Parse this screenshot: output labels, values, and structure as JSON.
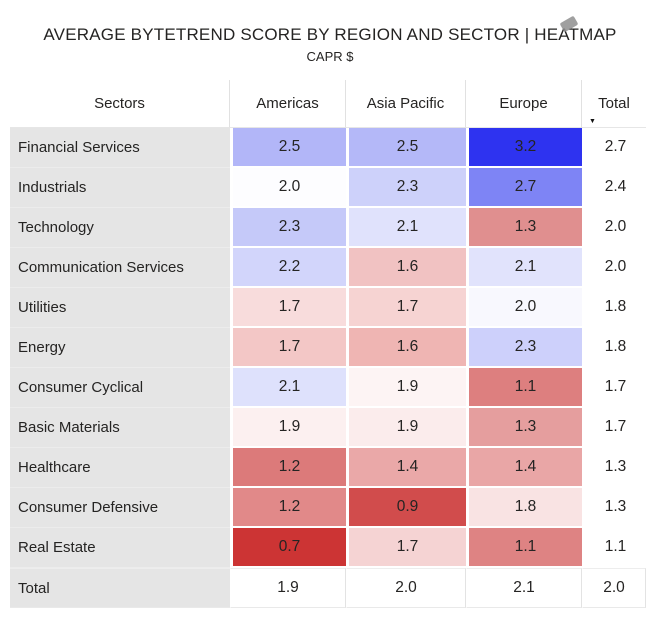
{
  "chart_data": {
    "type": "heatmap",
    "title": "AVERAGE BYTETREND SCORE BY REGION AND SECTOR | HEATMAP",
    "subtitle": "CAPR $",
    "x_categories": [
      "Americas",
      "Asia Pacific",
      "Europe",
      "Total"
    ],
    "y_categories": [
      "Financial Services",
      "Industrials",
      "Technology",
      "Communication Services",
      "Utilities",
      "Energy",
      "Consumer Cyclical",
      "Basic Materials",
      "Healthcare",
      "Consumer Defensive",
      "Real Estate",
      "Total"
    ],
    "values": [
      [
        2.5,
        2.5,
        3.2,
        2.7
      ],
      [
        2.0,
        2.3,
        2.7,
        2.4
      ],
      [
        2.3,
        2.1,
        1.3,
        2.0
      ],
      [
        2.2,
        1.6,
        2.1,
        2.0
      ],
      [
        1.7,
        1.7,
        2.0,
        1.8
      ],
      [
        1.7,
        1.6,
        2.3,
        1.8
      ],
      [
        2.1,
        1.9,
        1.1,
        1.7
      ],
      [
        1.9,
        1.9,
        1.3,
        1.7
      ],
      [
        1.2,
        1.4,
        1.4,
        1.3
      ],
      [
        1.2,
        0.9,
        1.8,
        1.3
      ],
      [
        0.7,
        1.7,
        1.1,
        1.1
      ],
      [
        1.9,
        2.0,
        2.1,
        2.0
      ]
    ],
    "color_scale": {
      "min": 0.7,
      "mid": 2.0,
      "max": 3.2,
      "min_color": "#cc3434",
      "mid_color": "#ffffff",
      "max_color": "#2e33f0",
      "applies_to": "region columns only, not Total column or Total row"
    },
    "sort": {
      "column": "Total",
      "direction": "descending"
    },
    "legend": "none",
    "grid": "off"
  },
  "table": {
    "columns": [
      "Sectors",
      "Americas",
      "Asia Pacific",
      "Europe",
      "Total"
    ],
    "sort": {
      "column": "Total",
      "direction": "descending",
      "indicator": "▼"
    },
    "rows": [
      {
        "sector": "Financial Services",
        "values": [
          "2.5",
          "2.5",
          "3.2",
          "2.7"
        ],
        "colors": [
          "#b2b6f8",
          "#b4b8f8",
          "#2e33f0",
          "#ffffff"
        ]
      },
      {
        "sector": "Industrials",
        "values": [
          "2.0",
          "2.3",
          "2.7",
          "2.4"
        ],
        "colors": [
          "#fdfdff",
          "#cdd1fa",
          "#7e84f5",
          "#ffffff"
        ]
      },
      {
        "sector": "Technology",
        "values": [
          "2.3",
          "2.1",
          "1.3",
          "2.0"
        ],
        "colors": [
          "#c5c9f9",
          "#e0e2fc",
          "#e08f8f",
          "#ffffff"
        ]
      },
      {
        "sector": "Communication Services",
        "values": [
          "2.2",
          "1.6",
          "2.1",
          "2.0"
        ],
        "colors": [
          "#d2d5fb",
          "#f1c2c2",
          "#e1e3fc",
          "#ffffff"
        ]
      },
      {
        "sector": "Utilities",
        "values": [
          "1.7",
          "1.7",
          "2.0",
          "1.8"
        ],
        "colors": [
          "#f8dcdc",
          "#f6d3d2",
          "#f8f8fe",
          "#ffffff"
        ]
      },
      {
        "sector": "Energy",
        "values": [
          "1.7",
          "1.6",
          "2.3",
          "1.8"
        ],
        "colors": [
          "#f3c7c6",
          "#efb5b3",
          "#cdd0fb",
          "#ffffff"
        ]
      },
      {
        "sector": "Consumer Cyclical",
        "values": [
          "2.1",
          "1.9",
          "1.1",
          "1.7"
        ],
        "colors": [
          "#dee1fc",
          "#fdf4f4",
          "#dd7f7f",
          "#ffffff"
        ]
      },
      {
        "sector": "Basic Materials",
        "values": [
          "1.9",
          "1.9",
          "1.3",
          "1.7"
        ],
        "colors": [
          "#fcf0f0",
          "#fbecec",
          "#e59e9e",
          "#ffffff"
        ]
      },
      {
        "sector": "Healthcare",
        "values": [
          "1.2",
          "1.4",
          "1.4",
          "1.3"
        ],
        "colors": [
          "#dc7a7a",
          "#eaa8a8",
          "#e9a6a6",
          "#ffffff"
        ]
      },
      {
        "sector": "Consumer Defensive",
        "values": [
          "1.2",
          "0.9",
          "1.8",
          "1.3"
        ],
        "colors": [
          "#e18989",
          "#d14c4c",
          "#f9e3e3",
          "#ffffff"
        ]
      },
      {
        "sector": "Real Estate",
        "values": [
          "0.7",
          "1.7",
          "1.1",
          "1.1"
        ],
        "colors": [
          "#cc3434",
          "#f5d3d3",
          "#de8383",
          "#ffffff"
        ]
      },
      {
        "sector": "Total",
        "values": [
          "1.9",
          "2.0",
          "2.1",
          "2.0"
        ],
        "colors": [
          "#ffffff",
          "#ffffff",
          "#ffffff",
          "#ffffff"
        ],
        "is_total": true
      }
    ]
  },
  "style_colors": {
    "sector_column_bg": "#e5e5e5",
    "header_divider": "#e1e1e1",
    "text": "#252423",
    "background": "#ffffff"
  }
}
